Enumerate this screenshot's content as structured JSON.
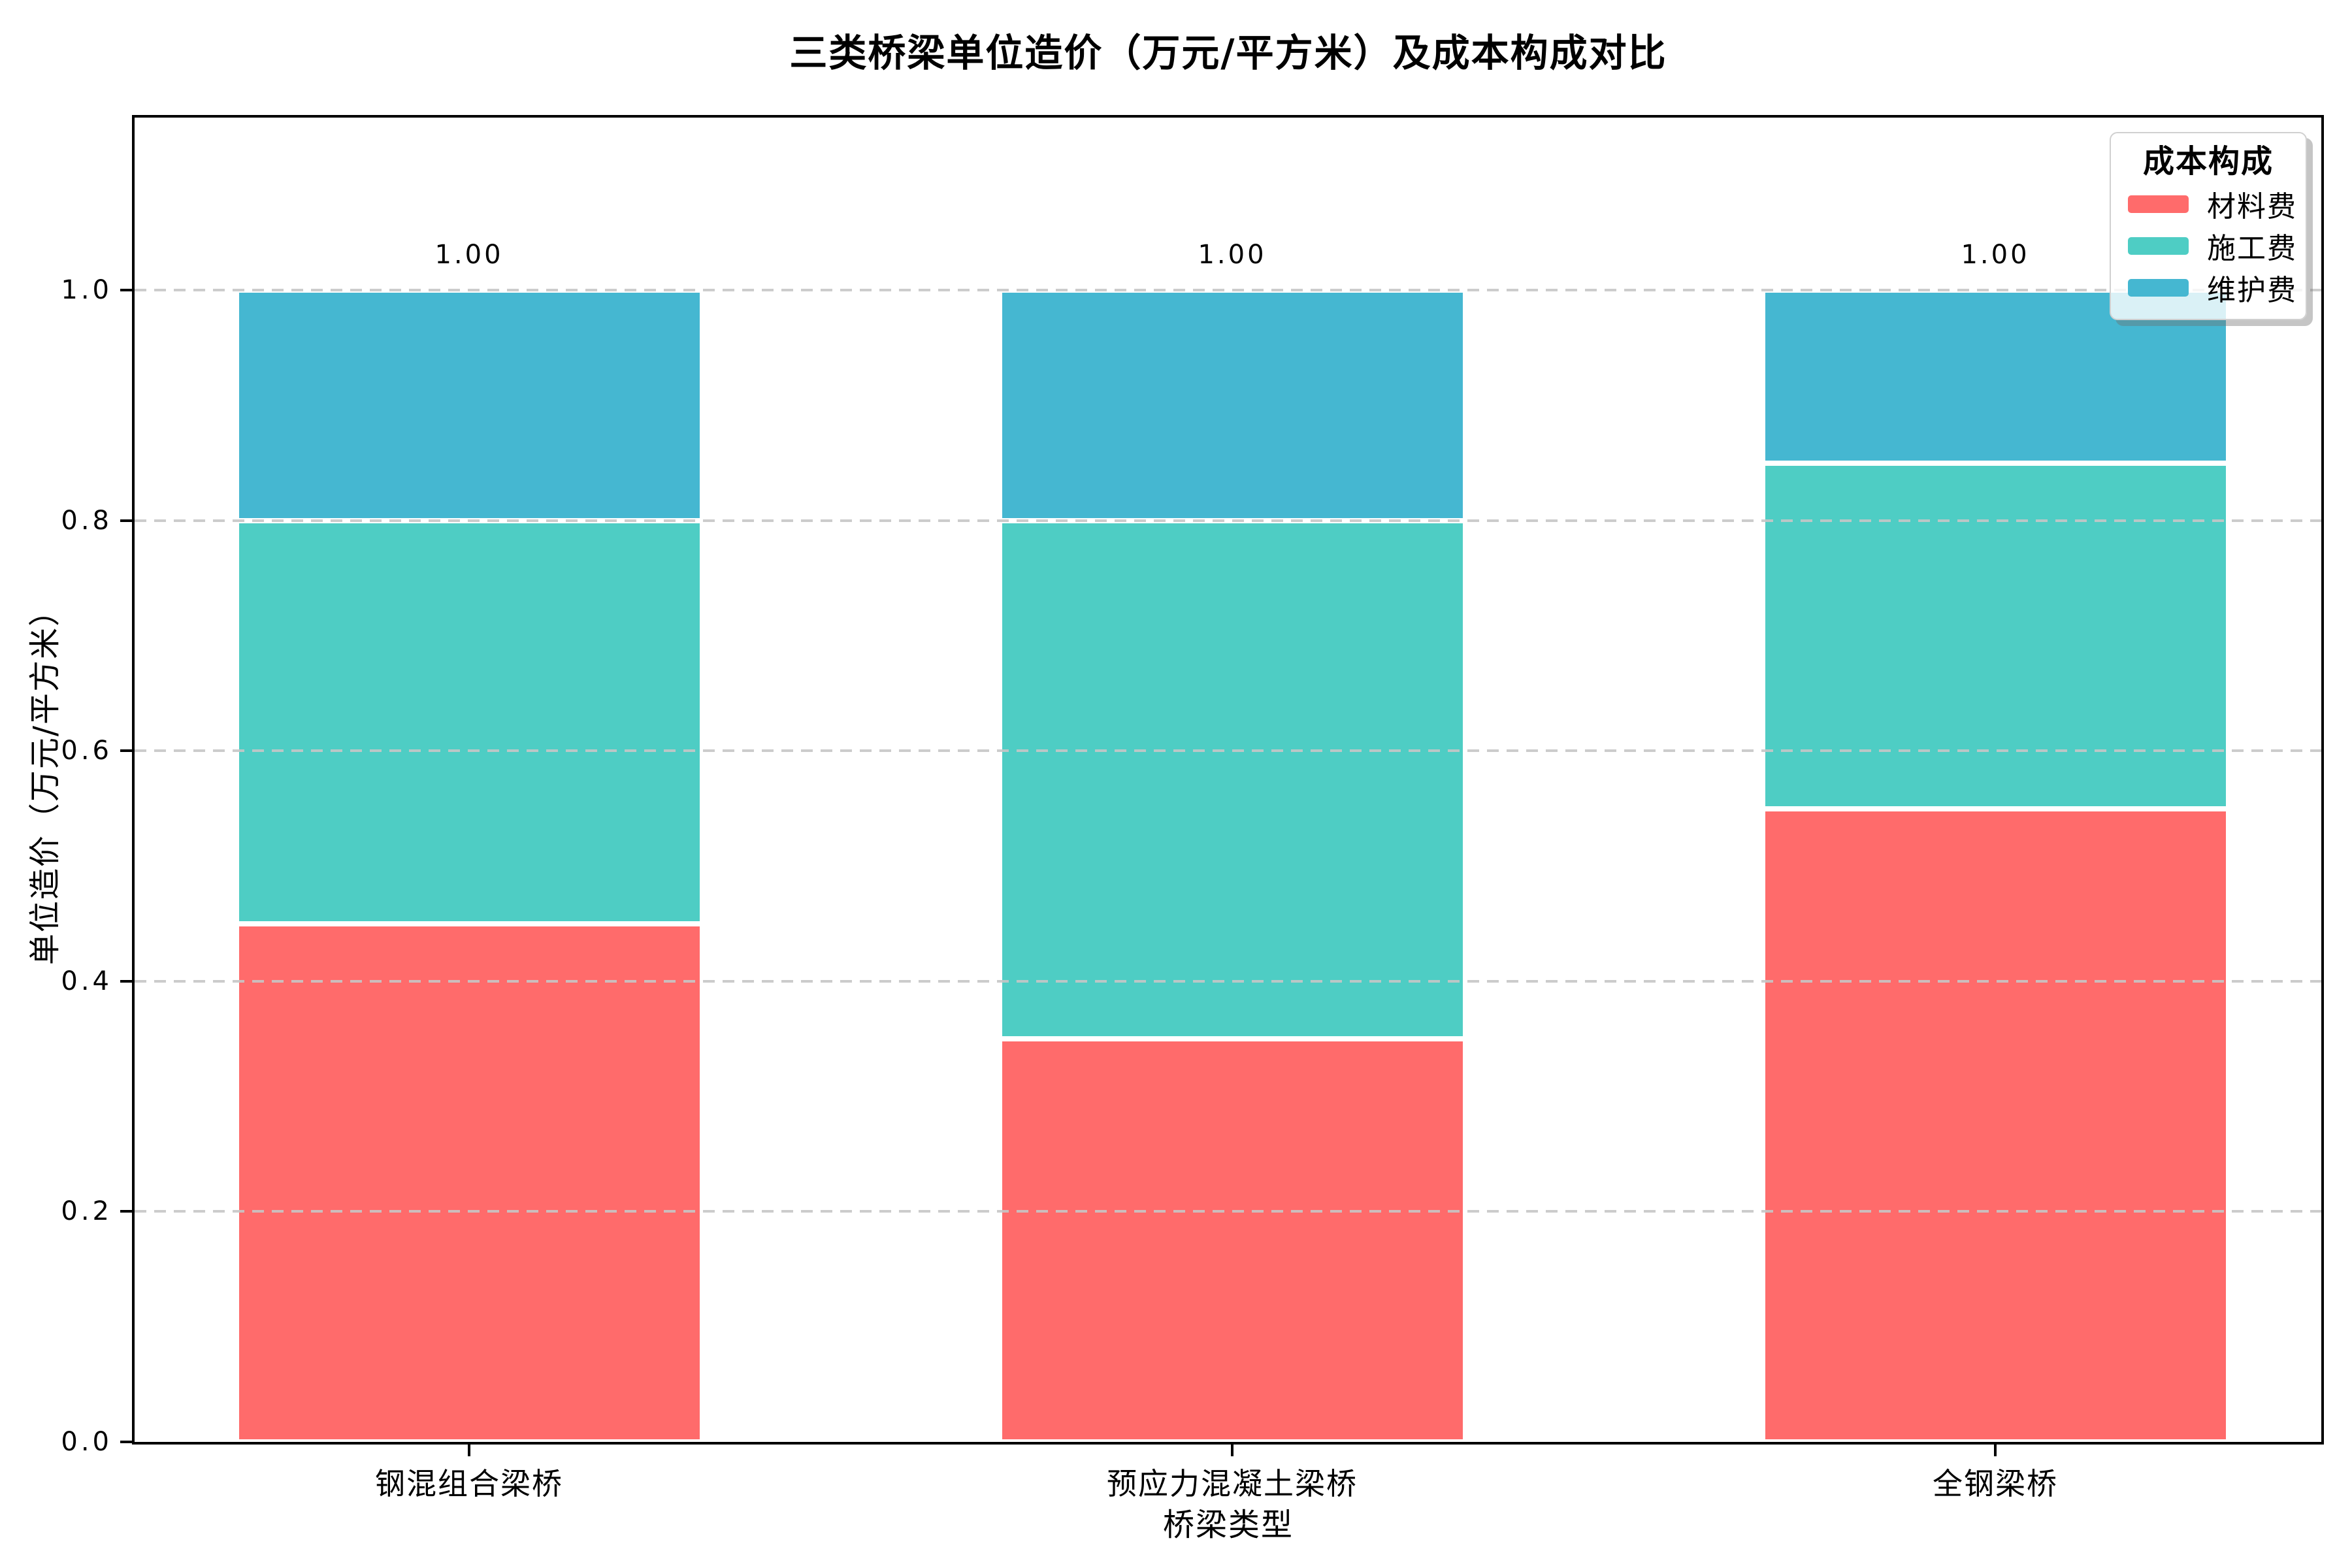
{
  "title": "三类桥梁单位造价（万元/平方米）及成本构成对比",
  "chart_data": {
    "type": "bar",
    "stacked": true,
    "title": "三类桥梁单位造价（万元/平方米）及成本构成对比",
    "xlabel": "桥梁类型",
    "ylabel": "单位造价（万元/平方米）",
    "categories": [
      "钢混组合梁桥",
      "预应力混凝土梁桥",
      "全钢梁桥"
    ],
    "series": [
      {
        "name": "材料费",
        "color": "#FF6B6B",
        "values": [
          0.45,
          0.35,
          0.55
        ]
      },
      {
        "name": "施工费",
        "color": "#4ECDC4",
        "values": [
          0.35,
          0.45,
          0.3
        ]
      },
      {
        "name": "维护费",
        "color": "#45B7D1",
        "values": [
          0.2,
          0.2,
          0.15
        ]
      }
    ],
    "totals": [
      "1.00",
      "1.00",
      "1.00"
    ],
    "ylim": [
      0,
      1.15
    ],
    "yticks": [
      0.0,
      0.2,
      0.4,
      0.6,
      0.8,
      1.0
    ],
    "ytick_labels": [
      "0.0",
      "0.2",
      "0.4",
      "0.6",
      "0.8",
      "1.0"
    ],
    "grid": "horizontal dashed, drawn above bars",
    "legend_title": "成本构成",
    "legend_position": "upper right",
    "segment_edge_color": "#ffffff",
    "gridline_color": "#c6c6c6"
  }
}
